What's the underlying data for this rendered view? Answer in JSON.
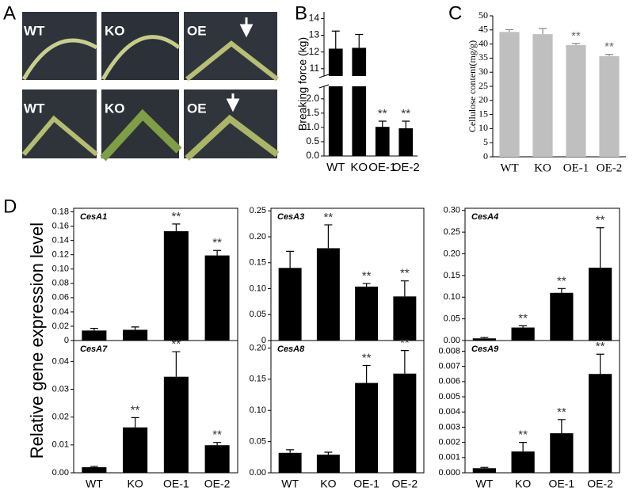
{
  "panel_labels": [
    "A",
    "B",
    "C",
    "D"
  ],
  "photo_labels": [
    "WT",
    "KO",
    "OE",
    "WT",
    "KO",
    "OE"
  ],
  "figure_d": {
    "ylabel": "Relative gene expression level"
  },
  "chart_data": [
    {
      "type": "bar",
      "ylabel": "Breaking force (kg)",
      "categories": [
        "WT",
        "KO",
        "OE-1",
        "OE-2"
      ],
      "values": [
        12.2,
        12.25,
        1.02,
        0.97
      ],
      "errors": [
        1.05,
        0.8,
        0.2,
        0.25
      ],
      "annotations": [
        null,
        null,
        "**",
        "**"
      ],
      "color": "#000000",
      "ylim": [
        0,
        14.4
      ],
      "axis_break": [
        2.3,
        10.8
      ],
      "yticks": [
        {
          "value": 0,
          "label": "0.0"
        },
        0.5,
        {
          "value": 1,
          "label": "1.0"
        },
        1.5,
        {
          "value": 2,
          "label": "2.0"
        },
        11,
        12,
        13,
        14
      ]
    },
    {
      "type": "bar",
      "ylabel": "Cellulose content(mg/g)",
      "categories": [
        "WT",
        "KO",
        "OE-1",
        "OE-2"
      ],
      "values": [
        44.3,
        43.5,
        39.6,
        35.7
      ],
      "errors": [
        0.8,
        2,
        0.6,
        0.6
      ],
      "annotations": [
        null,
        null,
        "**",
        "**"
      ],
      "color": "#bfbfbf",
      "ylim": [
        0,
        50
      ],
      "yticks": [
        0,
        5,
        10,
        15,
        20,
        25,
        30,
        35,
        40,
        45,
        50
      ]
    },
    {
      "type": "bar",
      "title": "CesA1",
      "values": [
        0.014,
        0.015,
        0.153,
        0.119
      ],
      "errors": [
        0.003,
        0.004,
        0.01,
        0.007
      ],
      "annotations": [
        null,
        null,
        "**",
        "**"
      ],
      "color": "#000000",
      "ylim": [
        0,
        0.185
      ],
      "yticks": [
        0,
        0.02,
        0.04,
        0.06,
        0.08,
        {
          "value": 0.1,
          "label": "0.10"
        },
        0.12,
        0.14,
        0.16,
        0.18
      ]
    },
    {
      "type": "bar",
      "title": "CesA3",
      "values": [
        0.14,
        0.178,
        0.104,
        0.085
      ],
      "errors": [
        0.032,
        0.045,
        0.006,
        0.03
      ],
      "annotations": [
        null,
        "**",
        "**",
        "**"
      ],
      "color": "#000000",
      "ylim": [
        0,
        0.255
      ],
      "yticks": [
        0,
        0.05,
        {
          "value": 0.1,
          "label": "0.10"
        },
        0.15,
        {
          "value": 0.2,
          "label": "0.20"
        },
        0.25
      ]
    },
    {
      "type": "bar",
      "title": "CesA4",
      "values": [
        0.005,
        0.03,
        0.11,
        0.168
      ],
      "errors": [
        0.002,
        0.004,
        0.01,
        0.092
      ],
      "annotations": [
        null,
        "**",
        "**",
        "**"
      ],
      "color": "#000000",
      "ylim": [
        0,
        0.305
      ],
      "yticks": [
        {
          "value": 0,
          "label": "0.00"
        },
        0.05,
        {
          "value": 0.1,
          "label": "0.10"
        },
        0.15,
        {
          "value": 0.2,
          "label": "0.20"
        },
        0.25,
        {
          "value": 0.3,
          "label": "0.30"
        }
      ]
    },
    {
      "type": "bar",
      "title": "CesA7",
      "categories": [
        "WT",
        "KO",
        "OE-1",
        "OE-2"
      ],
      "values": [
        0.002,
        0.0163,
        0.0345,
        0.0099
      ],
      "errors": [
        0.0003,
        0.0035,
        0.009,
        0.001
      ],
      "annotations": [
        null,
        "**",
        "**",
        "**"
      ],
      "color": "#000000",
      "ylim": [
        0,
        0.0475
      ],
      "yticks": [
        {
          "value": 0,
          "label": "0.00"
        },
        0.01,
        0.02,
        0.03,
        0.04
      ]
    },
    {
      "type": "bar",
      "title": "CesA8",
      "categories": [
        "WT",
        "KO",
        "OE-1",
        "OE-2"
      ],
      "values": [
        0.032,
        0.029,
        0.144,
        0.159
      ],
      "errors": [
        0.005,
        0.004,
        0.028,
        0.037
      ],
      "annotations": [
        null,
        null,
        "**",
        "**"
      ],
      "color": "#000000",
      "ylim": [
        0,
        0.212
      ],
      "yticks": [
        {
          "value": 0,
          "label": "0.00"
        },
        0.05,
        {
          "value": 0.1,
          "label": "0.10"
        },
        0.15,
        {
          "value": 0.2,
          "label": "0.20"
        }
      ]
    },
    {
      "type": "bar",
      "title": "CesA9",
      "categories": [
        "WT",
        "KO",
        "OE-1",
        "OE-2"
      ],
      "values": [
        0.0003,
        0.0014,
        0.0026,
        0.0065
      ],
      "errors": [
        5e-05,
        0.0006,
        0.0009,
        0.0013
      ],
      "annotations": [
        null,
        "**",
        "**",
        "**"
      ],
      "color": "#000000",
      "ylim": [
        0,
        0.0087
      ],
      "yticks": [
        {
          "value": 0,
          "label": "0.000"
        },
        0.001,
        0.002,
        0.003,
        0.004,
        0.005,
        0.006,
        0.007,
        0.008
      ]
    }
  ]
}
